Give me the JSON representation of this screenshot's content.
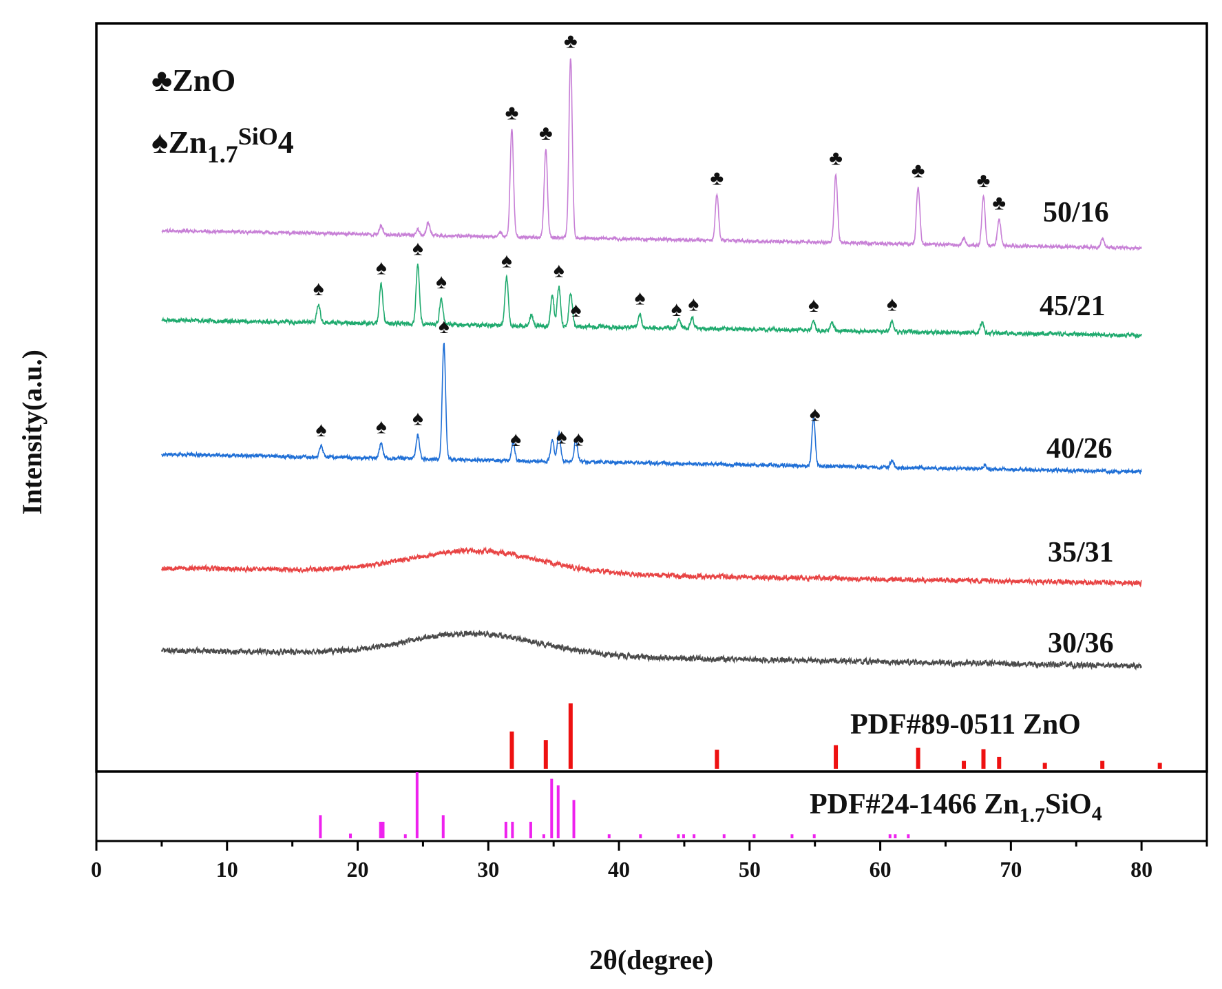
{
  "chart_data": {
    "type": "line",
    "xlabel": "2θ(degree)",
    "ylabel": "Intensity(a.u.)",
    "xlim": [
      0,
      85
    ],
    "x_ticks": [
      0,
      10,
      20,
      30,
      40,
      50,
      60,
      70,
      80
    ],
    "legend": [
      {
        "symbol": "♣",
        "text": "ZnO",
        "sub": "",
        "sup": "",
        "tail": ""
      },
      {
        "symbol": "♠",
        "text": "Zn",
        "sub": "1.7",
        "sup": "SiO",
        "tail": "4"
      }
    ],
    "series": [
      {
        "name": "50/16",
        "color": "#c77fd6",
        "baseline_start": 0.86,
        "baseline_end": 0.78,
        "noise": 0.006,
        "seed": 11,
        "humps": [],
        "peaks": [
          {
            "x": 21.8,
            "h": 0.04
          },
          {
            "x": 24.6,
            "h": 0.025
          },
          {
            "x": 25.4,
            "h": 0.06
          },
          {
            "x": 30.9,
            "h": 0.02
          },
          {
            "x": 31.8,
            "h": 0.49
          },
          {
            "x": 34.4,
            "h": 0.4
          },
          {
            "x": 36.3,
            "h": 0.82
          },
          {
            "x": 47.5,
            "h": 0.21
          },
          {
            "x": 56.6,
            "h": 0.31
          },
          {
            "x": 62.9,
            "h": 0.26
          },
          {
            "x": 66.4,
            "h": 0.03
          },
          {
            "x": 67.9,
            "h": 0.22
          },
          {
            "x": 69.1,
            "h": 0.12
          },
          {
            "x": 77.0,
            "h": 0.04
          }
        ],
        "markers": [
          {
            "x": 31.8,
            "symbol": "♣"
          },
          {
            "x": 34.4,
            "symbol": "♣"
          },
          {
            "x": 36.3,
            "symbol": "♣"
          },
          {
            "x": 47.5,
            "symbol": "♣"
          },
          {
            "x": 56.6,
            "symbol": "♣"
          },
          {
            "x": 62.9,
            "symbol": "♣"
          },
          {
            "x": 67.9,
            "symbol": "♣"
          },
          {
            "x": 69.1,
            "symbol": "♣"
          }
        ]
      },
      {
        "name": "45/21",
        "color": "#1faa6e",
        "baseline_start": 0.55,
        "baseline_end": 0.48,
        "noise": 0.008,
        "seed": 23,
        "humps": [],
        "peaks": [
          {
            "x": 17.0,
            "h": 0.08
          },
          {
            "x": 21.8,
            "h": 0.18
          },
          {
            "x": 24.6,
            "h": 0.27
          },
          {
            "x": 26.4,
            "h": 0.12
          },
          {
            "x": 31.4,
            "h": 0.22
          },
          {
            "x": 33.3,
            "h": 0.05
          },
          {
            "x": 34.9,
            "h": 0.14
          },
          {
            "x": 35.4,
            "h": 0.18
          },
          {
            "x": 36.3,
            "h": 0.15
          },
          {
            "x": 41.6,
            "h": 0.06
          },
          {
            "x": 44.6,
            "h": 0.04
          },
          {
            "x": 45.6,
            "h": 0.05
          },
          {
            "x": 54.9,
            "h": 0.04
          },
          {
            "x": 56.3,
            "h": 0.04
          },
          {
            "x": 60.9,
            "h": 0.05
          },
          {
            "x": 67.8,
            "h": 0.05
          }
        ],
        "markers": [
          {
            "x": 17.0,
            "symbol": "♠"
          },
          {
            "x": 21.8,
            "symbol": "♠"
          },
          {
            "x": 24.6,
            "symbol": "♠"
          },
          {
            "x": 26.4,
            "symbol": "♠"
          },
          {
            "x": 31.4,
            "symbol": "♠"
          },
          {
            "x": 35.4,
            "symbol": "♠"
          },
          {
            "x": 36.7,
            "symbol": "♠"
          },
          {
            "x": 41.6,
            "symbol": "♠"
          },
          {
            "x": 44.4,
            "symbol": "♠"
          },
          {
            "x": 45.7,
            "symbol": "♠"
          },
          {
            "x": 54.9,
            "symbol": "♠"
          },
          {
            "x": 60.9,
            "symbol": "♠"
          }
        ]
      },
      {
        "name": "40/26",
        "color": "#1f6fd6",
        "baseline_start": 0.1,
        "baseline_end": 0.02,
        "noise": 0.007,
        "seed": 37,
        "humps": [],
        "peaks": [
          {
            "x": 17.2,
            "h": 0.05
          },
          {
            "x": 21.8,
            "h": 0.07
          },
          {
            "x": 24.6,
            "h": 0.11
          },
          {
            "x": 26.6,
            "h": 0.53
          },
          {
            "x": 31.9,
            "h": 0.08
          },
          {
            "x": 34.9,
            "h": 0.1
          },
          {
            "x": 35.4,
            "h": 0.13
          },
          {
            "x": 36.7,
            "h": 0.1
          },
          {
            "x": 54.9,
            "h": 0.22
          },
          {
            "x": 60.9,
            "h": 0.03
          },
          {
            "x": 68.0,
            "h": 0.02
          }
        ],
        "markers": [
          {
            "x": 17.2,
            "symbol": "♠"
          },
          {
            "x": 21.8,
            "symbol": "♠"
          },
          {
            "x": 24.6,
            "symbol": "♠"
          },
          {
            "x": 26.6,
            "symbol": "♠"
          },
          {
            "x": 32.1,
            "symbol": "♠"
          },
          {
            "x": 35.6,
            "symbol": "♠"
          },
          {
            "x": 36.9,
            "symbol": "♠"
          },
          {
            "x": 55.0,
            "symbol": "♠"
          }
        ]
      },
      {
        "name": "35/31",
        "color": "#e84444",
        "baseline_start": -0.5,
        "baseline_end": -0.57,
        "noise": 0.01,
        "seed": 53,
        "humps": [
          {
            "x": 29,
            "h": 0.1,
            "w": 7
          }
        ],
        "peaks": [],
        "markers": []
      },
      {
        "name": "30/36",
        "color": "#4a4a4a",
        "baseline_start": -0.98,
        "baseline_end": -1.05,
        "noise": 0.011,
        "seed": 71,
        "humps": [
          {
            "x": 29,
            "h": 0.1,
            "w": 7
          }
        ],
        "peaks": [],
        "markers": []
      }
    ],
    "reference_patterns": [
      {
        "name": "PDF#89-0511 ZnO",
        "label_main": "PDF#89-0511 ZnO",
        "label_sub": "",
        "label_tail": "",
        "color": "#ee1111",
        "ylim": [
          0,
          100
        ],
        "lines": [
          {
            "x": 31.8,
            "i": 57
          },
          {
            "x": 34.4,
            "i": 44
          },
          {
            "x": 36.3,
            "i": 100
          },
          {
            "x": 47.5,
            "i": 29
          },
          {
            "x": 56.6,
            "i": 36
          },
          {
            "x": 62.9,
            "i": 32
          },
          {
            "x": 66.4,
            "i": 12
          },
          {
            "x": 67.9,
            "i": 30
          },
          {
            "x": 69.1,
            "i": 18
          },
          {
            "x": 72.6,
            "i": 9
          },
          {
            "x": 77.0,
            "i": 12
          },
          {
            "x": 81.4,
            "i": 9
          }
        ]
      },
      {
        "name": "PDF#24-1466 Zn1.7SiO4",
        "label_main": "PDF#24-1466 Zn",
        "label_sub": "1.7",
        "label_tail": "SiO",
        "label_tail_sub": "4",
        "color": "#ee22ee",
        "ylim": [
          0,
          100
        ],
        "lines": [
          {
            "x": 17.2,
            "i": 35
          },
          {
            "x": 19.5,
            "i": 7
          },
          {
            "x": 21.8,
            "i": 25
          },
          {
            "x": 22.0,
            "i": 25
          },
          {
            "x": 23.7,
            "i": 6
          },
          {
            "x": 24.6,
            "i": 100
          },
          {
            "x": 26.6,
            "i": 35
          },
          {
            "x": 31.4,
            "i": 25
          },
          {
            "x": 31.9,
            "i": 25
          },
          {
            "x": 33.3,
            "i": 25
          },
          {
            "x": 34.3,
            "i": 6
          },
          {
            "x": 34.9,
            "i": 90
          },
          {
            "x": 35.4,
            "i": 80
          },
          {
            "x": 36.6,
            "i": 58
          },
          {
            "x": 39.3,
            "i": 6
          },
          {
            "x": 41.7,
            "i": 6
          },
          {
            "x": 44.6,
            "i": 6
          },
          {
            "x": 45.0,
            "i": 6
          },
          {
            "x": 45.8,
            "i": 6
          },
          {
            "x": 48.1,
            "i": 6
          },
          {
            "x": 50.4,
            "i": 6
          },
          {
            "x": 53.3,
            "i": 6
          },
          {
            "x": 55.0,
            "i": 6
          },
          {
            "x": 60.8,
            "i": 6
          },
          {
            "x": 61.2,
            "i": 6
          },
          {
            "x": 62.2,
            "i": 6
          }
        ]
      }
    ]
  }
}
